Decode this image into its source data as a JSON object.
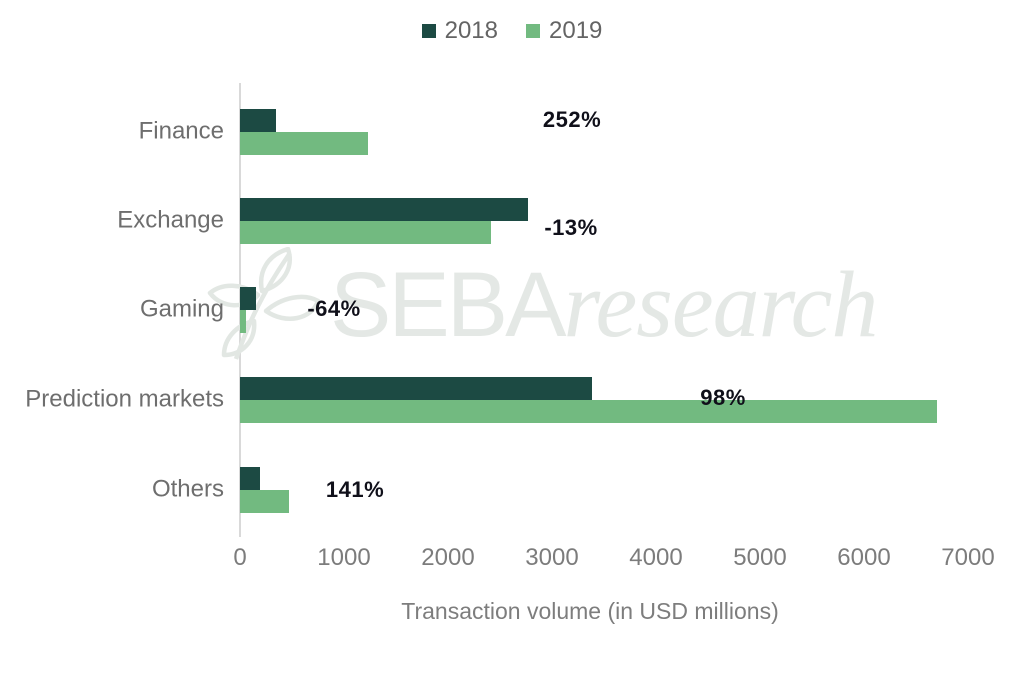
{
  "legend": {
    "items": [
      {
        "label": "2018",
        "color": "#1c4a43"
      },
      {
        "label": "2019",
        "color": "#72ba80"
      }
    ]
  },
  "watermark": {
    "brand": "SEBA",
    "suffix": "research"
  },
  "chart_data": {
    "type": "bar",
    "orientation": "horizontal",
    "title": "",
    "categories": [
      "Finance",
      "Exchange",
      "Gaming",
      "Prediction markets",
      "Others"
    ],
    "series": [
      {
        "name": "2018",
        "color": "#1c4a43",
        "values": [
          350,
          2770,
          155,
          3380,
          195
        ]
      },
      {
        "name": "2019",
        "color": "#72ba80",
        "values": [
          1230,
          2415,
          56,
          6700,
          470
        ]
      }
    ],
    "pct_change_labels": [
      "252%",
      "-13%",
      "-64%",
      "98%",
      "141%"
    ],
    "xlabel": "Transaction volume (in USD millions)",
    "ylabel": "",
    "xlim": [
      0,
      7000
    ],
    "xticks": [
      0,
      1000,
      2000,
      3000,
      4000,
      5000,
      6000,
      7000
    ],
    "xtick_labels": [
      "0",
      "1000",
      "2000",
      "3000",
      "4000",
      "5000",
      "6000",
      "7000"
    ],
    "grid": false,
    "legend_position": "top-center",
    "colors": {
      "axis_line": "#d9d9d9",
      "tick_text": "#7c7c7c",
      "category_text": "#6e6e6e",
      "annotation_text": "#10101a",
      "watermark": "#e4e8e5"
    }
  }
}
